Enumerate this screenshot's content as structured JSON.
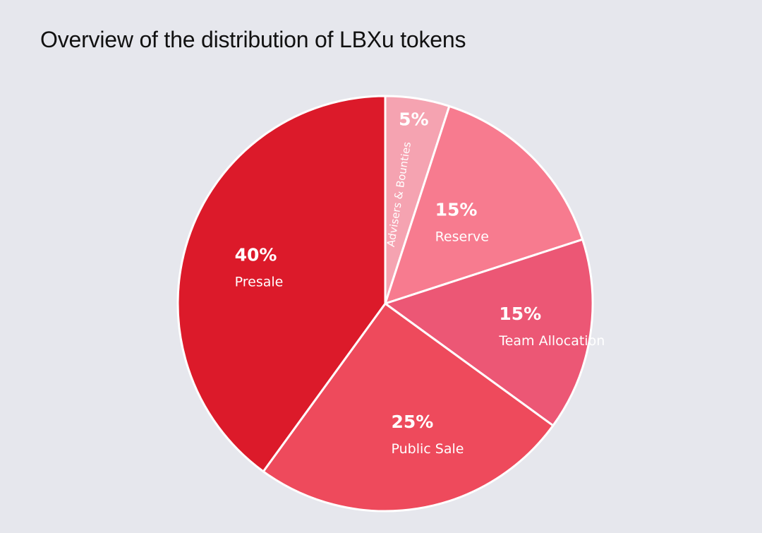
{
  "chart_data": {
    "type": "pie",
    "title": "Overview of the distribution of LBXu tokens",
    "slices": [
      {
        "label": "Advisers & Bounties",
        "value": 5,
        "display": "5%",
        "color": "#f5a3b1",
        "rotated": true
      },
      {
        "label": "Reserve",
        "value": 15,
        "display": "15%",
        "color": "#f77b8f"
      },
      {
        "label": "Team Allocation",
        "value": 15,
        "display": "15%",
        "color": "#ec5775"
      },
      {
        "label": "Public Sale",
        "value": 25,
        "display": "25%",
        "color": "#ee4a5c"
      },
      {
        "label": "Presale",
        "value": 40,
        "display": "40%",
        "color": "#dc1a2a"
      }
    ]
  }
}
